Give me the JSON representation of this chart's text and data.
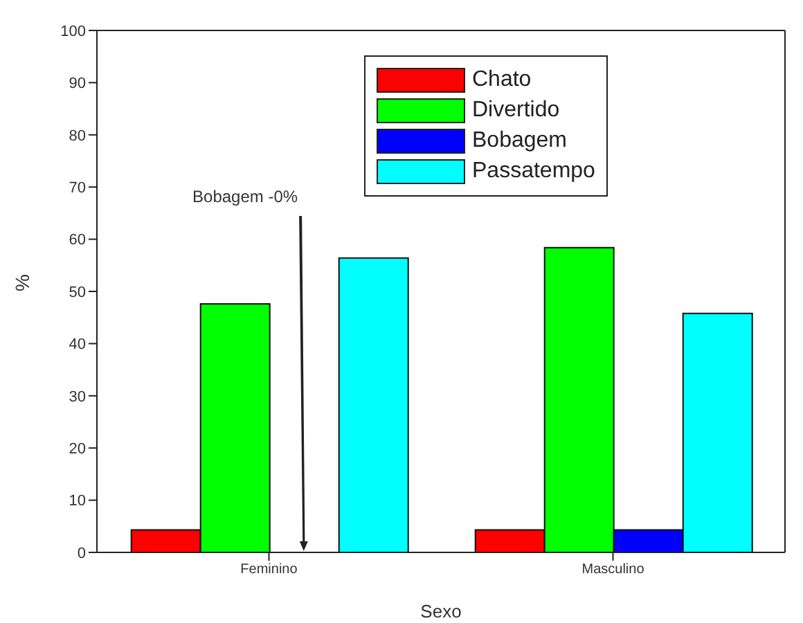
{
  "chart_data": {
    "type": "bar",
    "xlabel": "Sexo",
    "ylabel": "%",
    "categories": [
      "Feminino",
      "Masculino"
    ],
    "series": [
      {
        "name": "Chato",
        "color": "#ff0000",
        "values": [
          4.3,
          4.3
        ]
      },
      {
        "name": "Divertido",
        "color": "#00ff00",
        "values": [
          47.6,
          58.4
        ]
      },
      {
        "name": "Bobagem",
        "color": "#0000ff",
        "values": [
          0,
          4.3
        ]
      },
      {
        "name": "Passatempo",
        "color": "#00ffff",
        "values": [
          56.4,
          45.8
        ]
      }
    ],
    "ylim": [
      0,
      100
    ],
    "yticks": [
      0,
      10,
      20,
      30,
      40,
      50,
      60,
      70,
      80,
      90,
      100
    ],
    "grid": false,
    "legend": "top right",
    "annotations": [
      "Bobagem -0%"
    ]
  }
}
